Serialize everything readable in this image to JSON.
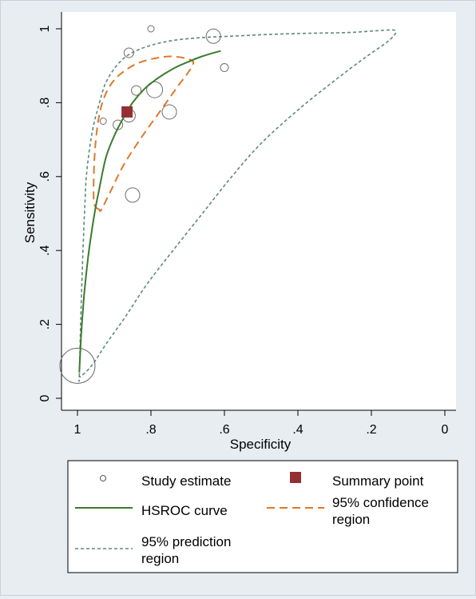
{
  "chart_data": {
    "type": "scatter",
    "title": "",
    "xlabel": "Specificity",
    "ylabel": "Sensitivity",
    "xlim": [
      1,
      0
    ],
    "ylim": [
      0,
      1
    ],
    "x_reversed": true,
    "x_ticks": [
      1,
      0.8,
      0.6,
      0.4,
      0.2,
      0
    ],
    "x_tick_labels": [
      "1",
      ".8",
      ".6",
      ".4",
      ".2",
      "0"
    ],
    "y_ticks": [
      0,
      0.2,
      0.4,
      0.6,
      0.8,
      1
    ],
    "y_tick_labels": [
      "0",
      ".2",
      ".4",
      ".6",
      ".8",
      "1"
    ],
    "grid": false,
    "legend_position": "bottom",
    "colors": {
      "background": "#e8edf1",
      "study": "#ffffff",
      "summary": "#943034",
      "hsroc": "#3c7a2e",
      "confidence": "#e0782a",
      "prediction": "#5d8a78"
    },
    "study_estimates": [
      {
        "specificity": 0.8,
        "sensitivity": 1.0,
        "size": 4
      },
      {
        "specificity": 0.63,
        "sensitivity": 0.98,
        "size": 9
      },
      {
        "specificity": 0.86,
        "sensitivity": 0.935,
        "size": 6
      },
      {
        "specificity": 0.6,
        "sensitivity": 0.895,
        "size": 5
      },
      {
        "specificity": 0.84,
        "sensitivity": 0.833,
        "size": 6
      },
      {
        "specificity": 0.79,
        "sensitivity": 0.835,
        "size": 10
      },
      {
        "specificity": 0.75,
        "sensitivity": 0.775,
        "size": 9
      },
      {
        "specificity": 0.86,
        "sensitivity": 0.765,
        "size": 8
      },
      {
        "specificity": 0.93,
        "sensitivity": 0.75,
        "size": 4
      },
      {
        "specificity": 0.89,
        "sensitivity": 0.74,
        "size": 6
      },
      {
        "specificity": 0.85,
        "sensitivity": 0.55,
        "size": 9
      },
      {
        "specificity": 1.0,
        "sensitivity": 0.088,
        "size": 22
      }
    ],
    "summary_point": {
      "specificity": 0.865,
      "sensitivity": 0.775
    },
    "hsroc_curve": {
      "specificity": [
        0.995,
        0.99,
        0.985,
        0.98,
        0.97,
        0.96,
        0.95,
        0.94,
        0.93,
        0.92,
        0.9,
        0.88,
        0.865,
        0.85,
        0.82,
        0.79,
        0.76,
        0.73,
        0.7,
        0.67,
        0.64,
        0.61
      ],
      "sensitivity": [
        0.07,
        0.17,
        0.24,
        0.3,
        0.39,
        0.46,
        0.52,
        0.57,
        0.62,
        0.66,
        0.71,
        0.75,
        0.775,
        0.8,
        0.835,
        0.86,
        0.88,
        0.897,
        0.91,
        0.922,
        0.932,
        0.94
      ]
    },
    "confidence_region": {
      "specificity": [
        0.94,
        0.955,
        0.955,
        0.95,
        0.94,
        0.925,
        0.905,
        0.88,
        0.84,
        0.79,
        0.74,
        0.69,
        0.69,
        0.73,
        0.78,
        0.83,
        0.875,
        0.91,
        0.935,
        0.94
      ],
      "sensitivity": [
        0.51,
        0.53,
        0.62,
        0.7,
        0.77,
        0.82,
        0.855,
        0.88,
        0.905,
        0.92,
        0.925,
        0.915,
        0.895,
        0.84,
        0.77,
        0.7,
        0.63,
        0.56,
        0.51,
        0.51
      ]
    },
    "prediction_region": {
      "specificity": [
        0.995,
        0.99,
        0.985,
        0.98,
        0.975,
        0.96,
        0.94,
        0.92,
        0.88,
        0.83,
        0.76,
        0.68,
        0.58,
        0.47,
        0.36,
        0.26,
        0.18,
        0.135,
        0.15,
        0.22,
        0.3,
        0.4,
        0.5,
        0.58,
        0.66,
        0.74,
        0.81,
        0.87,
        0.92,
        0.96,
        0.99,
        0.995
      ],
      "sensitivity": [
        0.06,
        0.25,
        0.4,
        0.52,
        0.61,
        0.72,
        0.8,
        0.86,
        0.915,
        0.945,
        0.965,
        0.975,
        0.98,
        0.985,
        0.988,
        0.99,
        0.995,
        0.995,
        0.97,
        0.92,
        0.86,
        0.78,
        0.69,
        0.6,
        0.5,
        0.4,
        0.31,
        0.22,
        0.15,
        0.09,
        0.06,
        0.06
      ]
    }
  },
  "legend": {
    "study": "Study estimate",
    "summary": "Summary point",
    "hsroc": "HSROC curve",
    "confidence_line1": "95% confidence",
    "confidence_line2": "region",
    "prediction_line1": "95% prediction",
    "prediction_line2": "region"
  }
}
